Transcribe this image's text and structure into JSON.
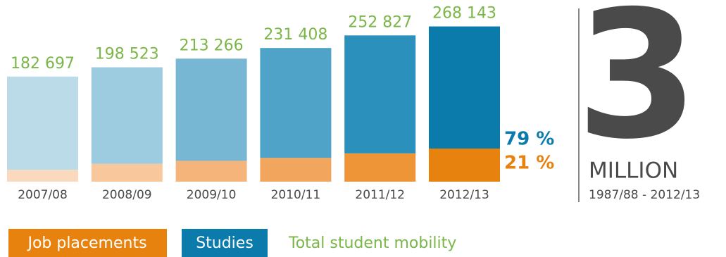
{
  "chart_data": {
    "type": "stacked_bar",
    "categories": [
      "2007/08",
      "2008/09",
      "2009/10",
      "2010/11",
      "2011/12",
      "2012/13"
    ],
    "series": [
      {
        "name": "Job placements",
        "color": "#e8820e",
        "colors": [
          "#fbd9bd",
          "#f8c89c",
          "#f5b57a",
          "#f2a65d",
          "#ee9538",
          "#e8820e"
        ],
        "values": [
          20122,
          30363,
          35491,
          40528,
          48232,
          56415
        ]
      },
      {
        "name": "Studies",
        "color": "#0a7bab",
        "colors": [
          "#bcdbe8",
          "#9dcbe0",
          "#78b7d4",
          "#50a3c8",
          "#2b90bb",
          "#0a7bab"
        ],
        "values": [
          162575,
          168160,
          177775,
          190880,
          204595,
          211728
        ]
      }
    ],
    "totals": {
      "name": "Total student mobility",
      "color": "#7ab648",
      "values": [
        182697,
        198523,
        213266,
        231408,
        252827,
        268143
      ],
      "value_labels": [
        "182 697",
        "198 523",
        "213 266",
        "231 408",
        "252 827",
        "268 143"
      ]
    },
    "shares": {
      "values": [
        79,
        21
      ],
      "value_labels": [
        "79 %",
        "21 %"
      ]
    },
    "ylim": [
      0,
      300000
    ],
    "headline": {
      "number": "3",
      "unit": "MILLION",
      "period": "1987/88 - 2012/13"
    }
  }
}
